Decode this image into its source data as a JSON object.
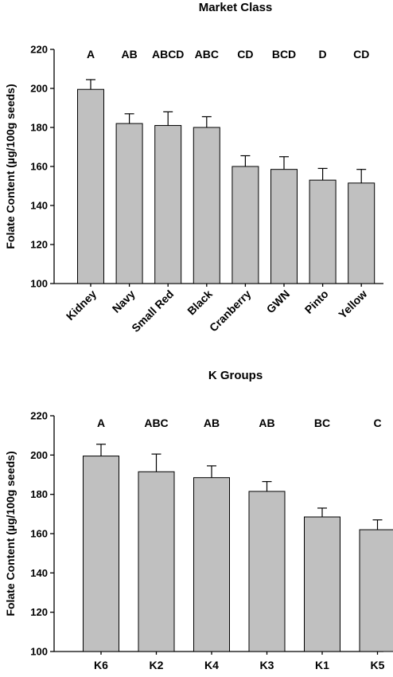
{
  "chart_data": [
    {
      "type": "bar",
      "title": "Market Class",
      "ylabel": "Folate Content (µg/100g seeds)",
      "xlabel": "",
      "ylim": [
        100,
        220
      ],
      "yticks": [
        100,
        120,
        140,
        160,
        180,
        200,
        220
      ],
      "categories": [
        "Kidney",
        "Navy",
        "Small Red",
        "Black",
        "Cranberry",
        "GWN",
        "Pinto",
        "Yellow"
      ],
      "values": [
        199.5,
        182,
        181,
        180,
        160,
        158.5,
        153,
        151.5
      ],
      "errors": [
        5,
        5,
        7,
        5.5,
        5.5,
        6.5,
        6,
        7
      ],
      "groups": [
        "A",
        "AB",
        "ABCD",
        "ABC",
        "CD",
        "BCD",
        "D",
        "CD"
      ]
    },
    {
      "type": "bar",
      "title": "K Groups",
      "ylabel": "Folate Content (µg/100g seeds)",
      "xlabel": "",
      "ylim": [
        100,
        220
      ],
      "yticks": [
        100,
        120,
        140,
        160,
        180,
        200,
        220
      ],
      "categories": [
        "K6",
        "K2",
        "K4",
        "K3",
        "K1",
        "K5"
      ],
      "values": [
        199.5,
        191.5,
        188.5,
        181.5,
        168.5,
        162
      ],
      "errors": [
        6,
        9,
        6,
        5,
        4.5,
        5
      ],
      "groups": [
        "A",
        "ABC",
        "AB",
        "AB",
        "BC",
        "C"
      ]
    }
  ]
}
